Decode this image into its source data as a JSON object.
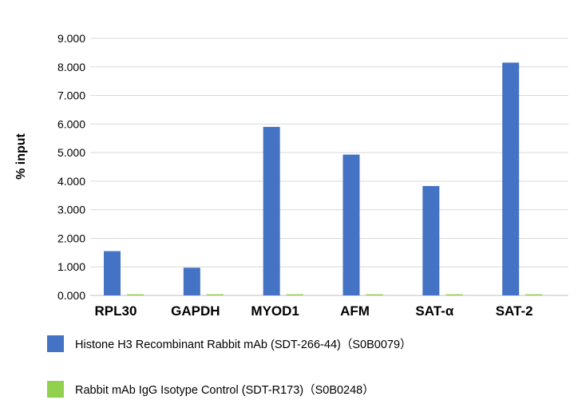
{
  "chart_data": {
    "type": "bar",
    "title": "",
    "xlabel": "",
    "ylabel": "% input",
    "ylim": [
      0,
      9
    ],
    "yticks": [
      "0.000",
      "1.000",
      "2.000",
      "3.000",
      "4.000",
      "5.000",
      "6.000",
      "7.000",
      "8.000",
      "9.000"
    ],
    "grid": true,
    "legend_position": "bottom-left",
    "categories": [
      "RPL30",
      "GAPDH",
      "MYOD1",
      "AFM",
      "SAT-α",
      "SAT-2"
    ],
    "series": [
      {
        "name": "Histone H3 Recombinant  Rabbit mAb (SDT-266-44)（S0B0079）",
        "color": "#4472c4",
        "values": [
          1.55,
          0.97,
          5.9,
          4.93,
          3.83,
          8.15
        ]
      },
      {
        "name": "Rabbit mAb IgG Isotype Control (SDT-R173)（S0B0248）",
        "color": "#92d050",
        "values": [
          0.04,
          0.04,
          0.04,
          0.04,
          0.04,
          0.04
        ]
      }
    ]
  }
}
